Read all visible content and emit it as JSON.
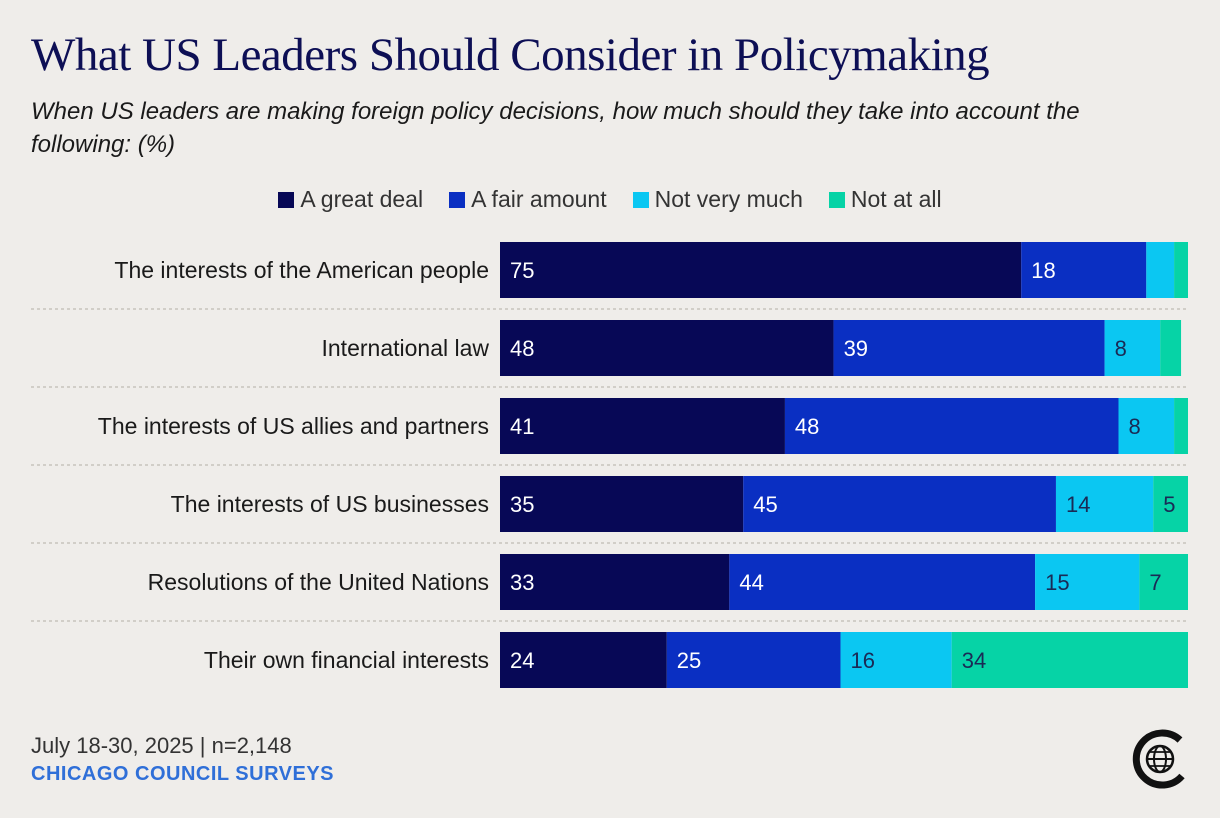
{
  "title": "What US Leaders Should Consider in Policymaking",
  "subtitle": "When US leaders are making foreign policy decisions, how much should they take into account the following: (%)",
  "footer": {
    "date": "July 18-30, 2025 | n=2,148",
    "brand": "CHICAGO COUNCIL SURVEYS"
  },
  "colors": {
    "great_deal": "#070856",
    "fair_amount": "#0a2fc2",
    "not_very_much": "#0bc7f2",
    "not_at_all": "#06d3a6"
  },
  "chart_data": {
    "type": "bar",
    "orientation": "horizontal-stacked",
    "title": "What US Leaders Should Consider in Policymaking",
    "subtitle": "When US leaders are making foreign policy decisions, how much should they take into account the following: (%)",
    "legend_position": "top",
    "categories": [
      "The interests of the American people",
      "International law",
      "The interests of US allies and partners",
      "The interests of US businesses",
      "Resolutions of the United Nations",
      "Their own financial interests"
    ],
    "series": [
      {
        "name": "A great deal",
        "color": "#070856",
        "values": [
          75,
          48,
          41,
          35,
          33,
          24
        ],
        "labels": [
          "75",
          "48",
          "41",
          "35",
          "33",
          "24"
        ]
      },
      {
        "name": "A fair amount",
        "color": "#0a2fc2",
        "values": [
          18,
          39,
          48,
          45,
          44,
          25
        ],
        "labels": [
          "18",
          "39",
          "48",
          "45",
          "44",
          "25"
        ]
      },
      {
        "name": "Not very much",
        "color": "#0bc7f2",
        "values": [
          4,
          8,
          8,
          14,
          15,
          16
        ],
        "labels": [
          "",
          "8",
          "8",
          "14",
          "15",
          "16"
        ]
      },
      {
        "name": "Not at all",
        "color": "#06d3a6",
        "values": [
          2,
          3,
          2,
          5,
          7,
          34
        ],
        "labels": [
          "",
          "",
          "",
          "5",
          "7",
          "34"
        ]
      }
    ],
    "xlim": [
      0,
      99
    ]
  }
}
